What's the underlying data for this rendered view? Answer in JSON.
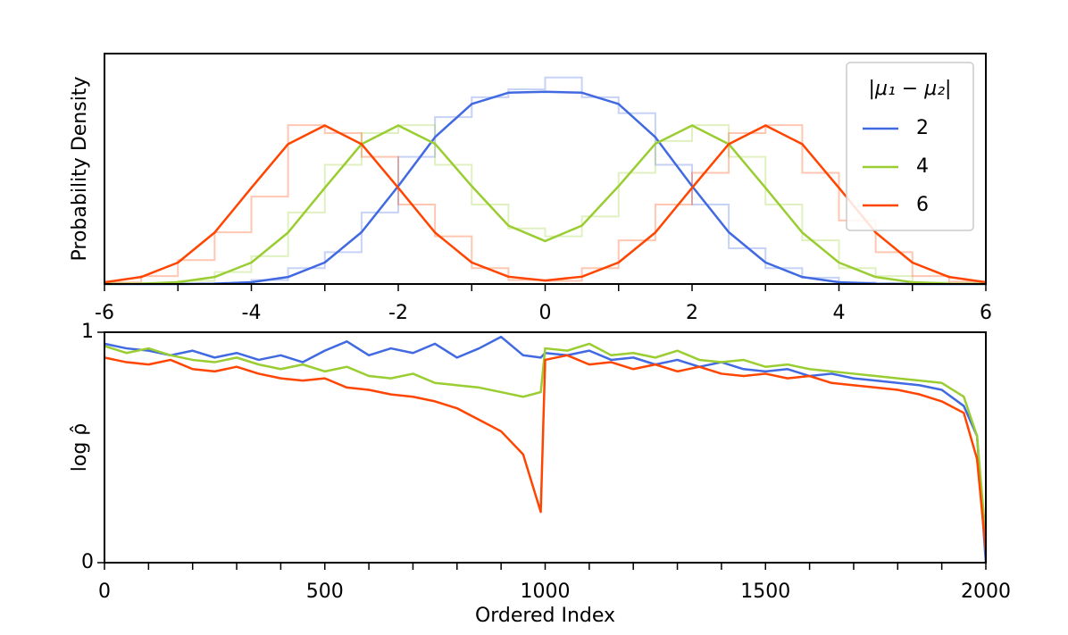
{
  "chart_data": [
    {
      "type": "line",
      "ylabel": "Probability Density",
      "xlim": [
        -6,
        6
      ],
      "ylim": [
        0,
        0.29
      ],
      "xticks": [
        -6,
        -4,
        -2,
        0,
        2,
        4,
        6
      ],
      "xminor_ticks": [
        -5,
        -3,
        -1,
        1,
        3,
        5
      ],
      "legend": "upper right",
      "legend_title": "|μ₁ − μ₂|",
      "x": [
        -6,
        -5.5,
        -5,
        -4.5,
        -4,
        -3.5,
        -3,
        -2.5,
        -2,
        -1.5,
        -1,
        -0.5,
        0,
        0.5,
        1,
        1.5,
        2,
        2.5,
        3,
        3.5,
        4,
        4.5,
        5,
        5.5,
        6
      ],
      "hist_bins": [
        -6,
        -5.5,
        -5,
        -4.5,
        -4,
        -3.5,
        -3,
        -2.5,
        -2,
        -1.5,
        -1,
        -0.5,
        0,
        0.5,
        1,
        1.5,
        2,
        2.5,
        3,
        3.5,
        4,
        4.5,
        5,
        5.5,
        6
      ],
      "series": [
        {
          "name": "2",
          "color": "#4169e1",
          "values": [
            0,
            1e-05,
            7e-05,
            0.00044,
            0.0022,
            0.0088,
            0.0271,
            0.0652,
            0.1232,
            0.1848,
            0.2265,
            0.2408,
            0.242,
            0.2408,
            0.2265,
            0.1848,
            0.1232,
            0.0652,
            0.0271,
            0.0088,
            0.0022,
            0.00044,
            7e-05,
            1e-05,
            0
          ],
          "hist": [
            0,
            0,
            0,
            0.001,
            0.005,
            0.02,
            0.04,
            0.09,
            0.16,
            0.21,
            0.235,
            0.245,
            0.26,
            0.235,
            0.215,
            0.15,
            0.1,
            0.045,
            0.02,
            0.008,
            0.002,
            0,
            0,
            0
          ]
        },
        {
          "name": "4",
          "color": "#9acd32",
          "values": [
            0.0001,
            0.0004,
            0.0022,
            0.0088,
            0.027,
            0.0648,
            0.121,
            0.1761,
            0.1995,
            0.1765,
            0.1232,
            0.0735,
            0.054,
            0.0735,
            0.1232,
            0.1765,
            0.1995,
            0.1761,
            0.121,
            0.0648,
            0.027,
            0.0088,
            0.0022,
            0.0004,
            0.0001
          ],
          "hist": [
            0,
            0.001,
            0.004,
            0.015,
            0.035,
            0.09,
            0.15,
            0.19,
            0.2,
            0.15,
            0.1,
            0.07,
            0.06,
            0.085,
            0.14,
            0.18,
            0.2,
            0.16,
            0.1,
            0.055,
            0.02,
            0.01,
            0.002,
            0
          ]
        },
        {
          "name": "6",
          "color": "#ff4500",
          "values": [
            0.0022,
            0.0088,
            0.027,
            0.0648,
            0.121,
            0.1761,
            0.1995,
            0.1761,
            0.121,
            0.0648,
            0.0271,
            0.0092,
            0.0044,
            0.0092,
            0.0271,
            0.0648,
            0.121,
            0.1761,
            0.1995,
            0.1761,
            0.121,
            0.0648,
            0.027,
            0.0088,
            0.0022
          ],
          "hist": [
            0.002,
            0.01,
            0.03,
            0.065,
            0.11,
            0.2,
            0.19,
            0.16,
            0.1,
            0.06,
            0.02,
            0.005,
            0.004,
            0.02,
            0.055,
            0.1,
            0.14,
            0.19,
            0.2,
            0.14,
            0.08,
            0.04,
            0.01,
            0.003
          ]
        }
      ]
    },
    {
      "type": "line",
      "xlabel": "Ordered Index",
      "ylabel": "log ρ̂",
      "xlim": [
        0,
        2000
      ],
      "ylim": [
        0,
        1
      ],
      "xticks": [
        0,
        500,
        1000,
        1500,
        2000
      ],
      "xminor_ticks": [
        100,
        200,
        300,
        400,
        600,
        700,
        800,
        900,
        1100,
        1200,
        1300,
        1400,
        1600,
        1700,
        1800,
        1900
      ],
      "yticks": [
        0,
        1
      ],
      "x": [
        0,
        50,
        100,
        150,
        200,
        250,
        300,
        350,
        400,
        450,
        500,
        550,
        600,
        650,
        700,
        750,
        800,
        850,
        900,
        950,
        990,
        1000,
        1050,
        1100,
        1150,
        1200,
        1250,
        1300,
        1350,
        1400,
        1450,
        1500,
        1550,
        1600,
        1650,
        1700,
        1750,
        1800,
        1850,
        1900,
        1950,
        1980,
        2000
      ],
      "series": [
        {
          "name": "2",
          "color": "#4169e1",
          "values": [
            0.95,
            0.93,
            0.92,
            0.9,
            0.92,
            0.89,
            0.91,
            0.88,
            0.9,
            0.87,
            0.92,
            0.96,
            0.9,
            0.93,
            0.91,
            0.95,
            0.89,
            0.93,
            0.98,
            0.9,
            0.89,
            0.91,
            0.9,
            0.92,
            0.88,
            0.89,
            0.86,
            0.88,
            0.85,
            0.87,
            0.84,
            0.83,
            0.84,
            0.81,
            0.82,
            0.8,
            0.79,
            0.78,
            0.77,
            0.75,
            0.68,
            0.55,
            0.0
          ]
        },
        {
          "name": "4",
          "color": "#9acd32",
          "values": [
            0.94,
            0.91,
            0.93,
            0.9,
            0.88,
            0.87,
            0.89,
            0.86,
            0.84,
            0.86,
            0.83,
            0.85,
            0.81,
            0.8,
            0.82,
            0.78,
            0.77,
            0.76,
            0.74,
            0.72,
            0.74,
            0.93,
            0.92,
            0.95,
            0.9,
            0.91,
            0.89,
            0.92,
            0.88,
            0.87,
            0.88,
            0.85,
            0.86,
            0.84,
            0.83,
            0.82,
            0.81,
            0.8,
            0.79,
            0.78,
            0.72,
            0.55,
            0.1
          ]
        },
        {
          "name": "6",
          "color": "#ff4500",
          "values": [
            0.89,
            0.87,
            0.86,
            0.88,
            0.84,
            0.83,
            0.85,
            0.82,
            0.8,
            0.79,
            0.8,
            0.76,
            0.75,
            0.73,
            0.72,
            0.7,
            0.67,
            0.62,
            0.57,
            0.47,
            0.22,
            0.88,
            0.9,
            0.86,
            0.87,
            0.84,
            0.86,
            0.83,
            0.85,
            0.82,
            0.81,
            0.82,
            0.8,
            0.81,
            0.78,
            0.77,
            0.76,
            0.75,
            0.73,
            0.7,
            0.65,
            0.45,
            0.05
          ]
        }
      ]
    }
  ]
}
